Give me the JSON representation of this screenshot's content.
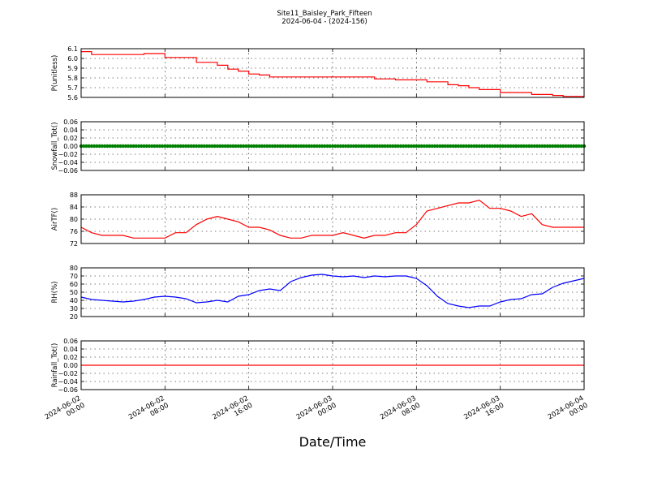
{
  "figure": {
    "title": "Site11_Baisley_Park_Fifteen",
    "subtitle": "2024-06-04 - (2024-156)",
    "xlabel": "Date/Time"
  },
  "chart_data": [
    {
      "type": "line",
      "ylabel": "P(unitless)",
      "ylim": [
        5.6,
        6.1
      ],
      "yticks": [
        "5.6",
        "5.7",
        "5.8",
        "5.9",
        "6.0",
        "6.1"
      ],
      "grid": true,
      "series": [
        {
          "color": "#ff0000",
          "step": true,
          "x_hours": [
            0,
            1,
            3,
            6,
            8,
            9,
            11,
            13,
            14,
            15,
            16,
            17,
            18,
            20,
            22,
            24,
            26,
            28,
            30,
            32,
            33,
            35,
            36,
            37,
            38,
            40,
            42,
            43,
            44,
            45,
            46,
            47,
            48
          ],
          "values": [
            6.07,
            6.04,
            6.04,
            6.05,
            6.01,
            6.01,
            5.96,
            5.93,
            5.89,
            5.87,
            5.84,
            5.83,
            5.81,
            5.81,
            5.81,
            5.81,
            5.81,
            5.79,
            5.78,
            5.78,
            5.76,
            5.73,
            5.72,
            5.7,
            5.68,
            5.65,
            5.65,
            5.63,
            5.63,
            5.62,
            5.61,
            5.61,
            5.61
          ]
        }
      ]
    },
    {
      "type": "scatter",
      "ylabel": "Snowfall_Tot()",
      "ylim": [
        -0.06,
        0.06
      ],
      "yticks": [
        "−0.06",
        "−0.04",
        "−0.02",
        "0.00",
        "0.02",
        "0.04",
        "0.06"
      ],
      "grid": true,
      "series": [
        {
          "color": "#008000",
          "constant": 0.0,
          "x_start_hours": 0,
          "x_end_hours": 48
        }
      ]
    },
    {
      "type": "line",
      "ylabel": "AirTF()",
      "ylim": [
        70,
        88
      ],
      "yticks": [
        "72",
        "76",
        "80",
        "84",
        "88"
      ],
      "grid": true,
      "series": [
        {
          "color": "#ff0000",
          "x_hours": [
            0,
            1,
            2,
            3,
            4,
            5,
            6,
            7,
            8,
            9,
            10,
            11,
            12,
            13,
            14,
            15,
            16,
            17,
            18,
            19,
            20,
            21,
            22,
            23,
            24,
            25,
            26,
            27,
            28,
            29,
            30,
            31,
            32,
            33,
            34,
            35,
            36,
            37,
            38,
            39,
            40,
            41,
            42,
            43,
            44,
            45,
            46,
            47,
            48
          ],
          "values": [
            76,
            74,
            73,
            73,
            73,
            72,
            72,
            72,
            72,
            74,
            74,
            77,
            79,
            80,
            79,
            78,
            76,
            76,
            75,
            73,
            72,
            72,
            73,
            73,
            73,
            74,
            73,
            72,
            73,
            73,
            74,
            74,
            77,
            82,
            83,
            84,
            85,
            85,
            86,
            83,
            83,
            82,
            80,
            81,
            77,
            76,
            76,
            76,
            76
          ]
        }
      ]
    },
    {
      "type": "line",
      "ylabel": "RH(%)",
      "ylim": [
        20,
        80
      ],
      "yticks": [
        "20",
        "30",
        "40",
        "50",
        "60",
        "70",
        "80"
      ],
      "grid": true,
      "series": [
        {
          "color": "#0000ff",
          "x_hours": [
            0,
            1,
            2,
            3,
            4,
            5,
            6,
            7,
            8,
            9,
            10,
            11,
            12,
            13,
            14,
            15,
            16,
            17,
            18,
            19,
            20,
            21,
            22,
            23,
            24,
            25,
            26,
            27,
            28,
            29,
            30,
            31,
            32,
            33,
            34,
            35,
            36,
            37,
            38,
            39,
            40,
            41,
            42,
            43,
            44,
            45,
            46,
            47,
            48
          ],
          "values": [
            44,
            41,
            40,
            39,
            38,
            39,
            41,
            44,
            45,
            44,
            42,
            37,
            38,
            40,
            38,
            45,
            47,
            52,
            54,
            52,
            63,
            68,
            71,
            72,
            70,
            69,
            70,
            68,
            70,
            69,
            70,
            70,
            67,
            58,
            45,
            36,
            33,
            31,
            33,
            33,
            38,
            41,
            42,
            47,
            48,
            56,
            61,
            64,
            67
          ]
        }
      ]
    },
    {
      "type": "line",
      "ylabel": "Rainfall_Tot()",
      "ylim": [
        -0.06,
        0.06
      ],
      "yticks": [
        "−0.06",
        "−0.04",
        "−0.02",
        "0.00",
        "0.02",
        "0.04",
        "0.06"
      ],
      "grid": true,
      "series": [
        {
          "color": "#ff0000",
          "x_hours": [
            0,
            48
          ],
          "values": [
            0.0,
            0.0
          ]
        }
      ]
    }
  ],
  "x_axis": {
    "range_hours": [
      0,
      48
    ],
    "tick_hours": [
      0,
      8,
      16,
      24,
      32,
      40,
      48
    ],
    "tick_labels": [
      [
        "2024-06-02",
        "00:00"
      ],
      [
        "2024-06-02",
        "08:00"
      ],
      [
        "2024-06-02",
        "16:00"
      ],
      [
        "2024-06-03",
        "00:00"
      ],
      [
        "2024-06-03",
        "08:00"
      ],
      [
        "2024-06-03",
        "16:00"
      ],
      [
        "2024-06-04",
        "00:00"
      ]
    ]
  }
}
